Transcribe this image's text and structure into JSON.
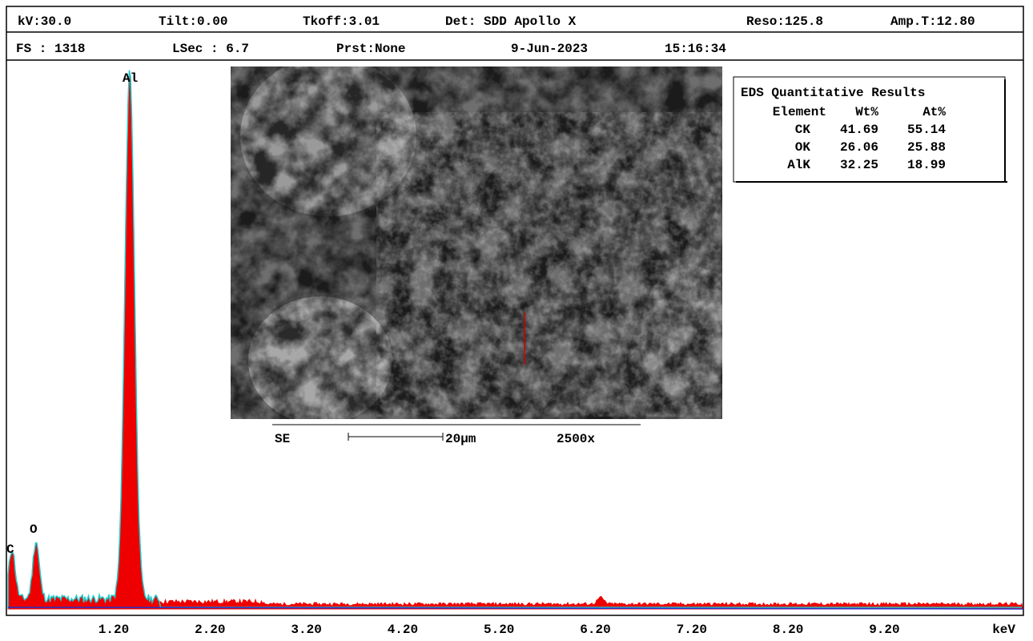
{
  "header": {
    "row1": [
      "kV:30.0",
      "Tilt:0.00",
      "Tkoff:3.01",
      "Det: SDD Apollo X",
      "Reso:125.8",
      "Amp.T:12.80"
    ],
    "row2": [
      "FS : 1318",
      "LSec : 6.7",
      "Prst:None",
      "9-Jun-2023",
      "15:16:34"
    ]
  },
  "image": {
    "mode": "SE",
    "scale": "20µm",
    "magnification": "2500x"
  },
  "results": {
    "title": "EDS Quantitative Results",
    "columns": [
      "Element",
      "Wt%",
      "At%"
    ],
    "rows": [
      [
        "CK",
        "41.69",
        "55.14"
      ],
      [
        "OK",
        "26.06",
        "25.88"
      ],
      [
        "AlK",
        "32.25",
        "18.99"
      ]
    ]
  },
  "peaks": [
    "C",
    "O",
    "Al"
  ],
  "xaxis": {
    "ticks": [
      "1.20",
      "2.20",
      "3.20",
      "4.20",
      "5.20",
      "6.20",
      "7.20",
      "8.20",
      "9.20"
    ],
    "unit": "keV"
  }
}
